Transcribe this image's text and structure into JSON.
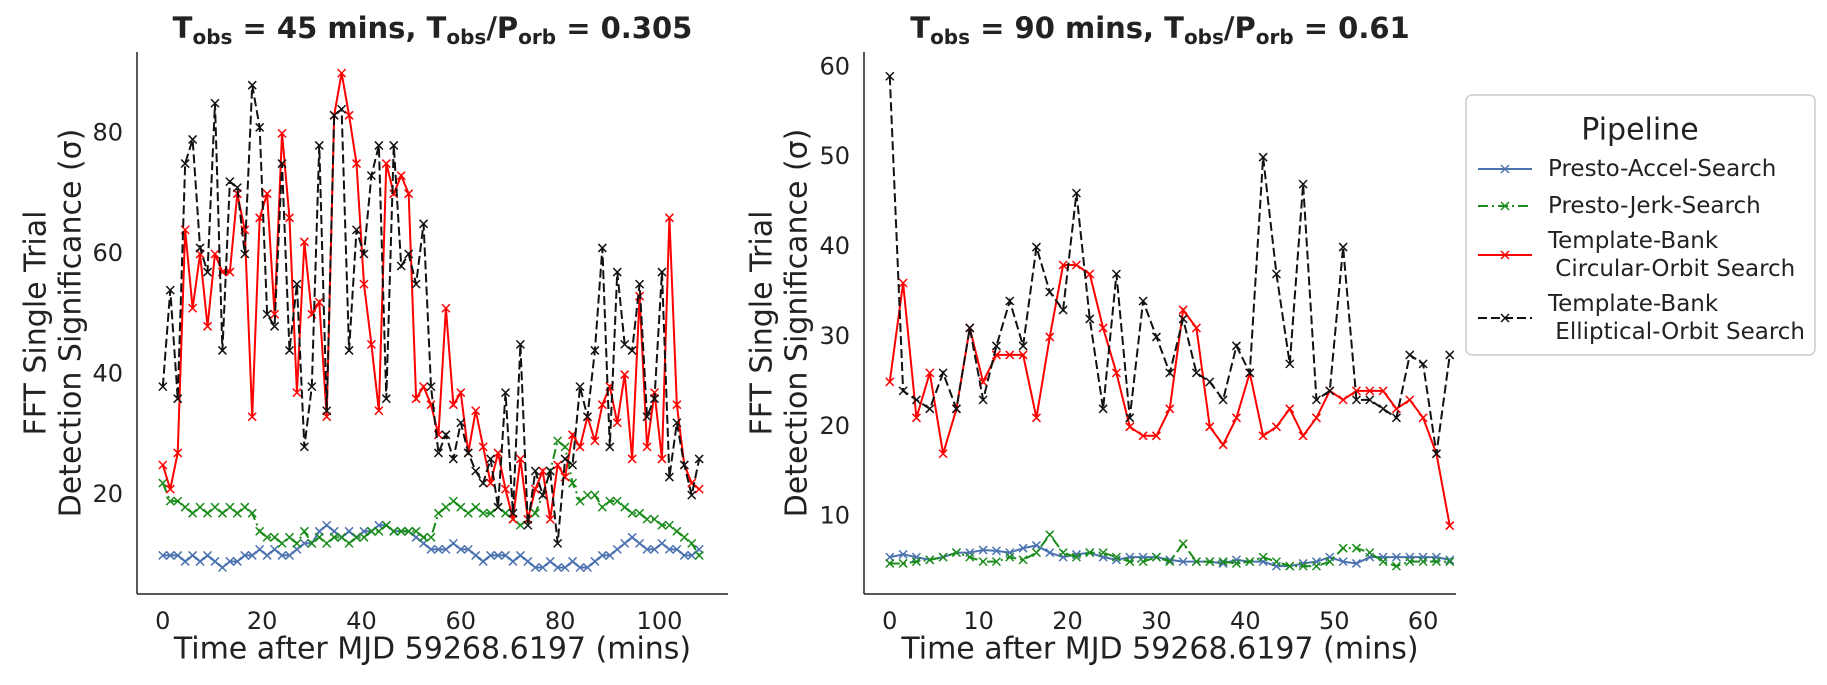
{
  "chart_data": [
    {
      "type": "line",
      "title": [
        "T",
        "obs",
        " = 45 mins, T",
        "obs",
        "/P",
        "orb",
        " = 0.305"
      ],
      "xlabel": "Time after MJD 59268.6197 (mins)",
      "ylabel": [
        "FFT Single Trial",
        "Detection Significance (σ)"
      ],
      "xlim": [
        -5.2,
        113.8
      ],
      "ylim": [
        3.6,
        93.5
      ],
      "xticks": [
        0,
        20,
        40,
        60,
        80,
        100
      ],
      "yticks": [
        20,
        40,
        60,
        80
      ],
      "x": [
        0,
        1.5,
        3,
        4.5,
        6,
        7.5,
        9,
        10.5,
        12,
        13.5,
        15,
        16.5,
        18,
        19.5,
        21,
        22.5,
        24,
        25.5,
        27,
        28.5,
        30,
        31.5,
        33,
        34.5,
        36,
        37.5,
        39,
        40.5,
        42,
        43.5,
        45,
        46.5,
        48,
        49.5,
        51,
        52.5,
        54,
        55.5,
        57,
        58.5,
        60,
        61.5,
        63,
        64.5,
        66,
        67.5,
        69,
        70.5,
        72,
        73.5,
        75,
        76.5,
        78,
        79.5,
        81,
        82.5,
        84,
        85.5,
        87,
        88.5,
        90,
        91.5,
        93,
        94.5,
        96,
        97.5,
        99,
        100.5,
        102,
        103.5,
        105,
        106.5,
        108
      ],
      "series": [
        {
          "name": "Presto-Accel-Search",
          "color": "#4c72b0",
          "linestyle": "solid",
          "values": [
            10,
            10,
            10,
            9,
            10,
            9,
            10,
            9,
            8,
            9,
            9,
            10,
            10,
            11,
            10,
            11,
            10,
            10,
            11,
            12,
            12,
            14,
            15,
            14,
            13,
            14,
            13,
            14,
            14,
            15,
            15,
            14,
            14,
            14,
            13,
            12,
            11,
            11,
            11,
            12,
            11,
            11,
            10,
            9,
            10,
            10,
            10,
            9,
            10,
            9,
            8,
            8,
            9,
            8,
            8,
            9,
            8,
            8,
            9,
            10,
            10,
            11,
            12,
            13,
            12,
            11,
            11,
            12,
            11,
            11,
            10,
            10,
            11
          ]
        },
        {
          "name": "Presto-Jerk-Search",
          "color": "#1a8c1a",
          "linestyle": "dashdot",
          "values": [
            22,
            19,
            19,
            18,
            17,
            18,
            17,
            18,
            17,
            18,
            17,
            18,
            17,
            14,
            13,
            13,
            12,
            13,
            12,
            14,
            12,
            13,
            12,
            13,
            13,
            12,
            13,
            13,
            14,
            14,
            15,
            14,
            14,
            14,
            14,
            13,
            13,
            17,
            18,
            19,
            18,
            17,
            18,
            17,
            17,
            18,
            17,
            16,
            15,
            16,
            17,
            20,
            24,
            29,
            28,
            22,
            19,
            20,
            20,
            18,
            19,
            19,
            18,
            17,
            17,
            16,
            16,
            15,
            15,
            14,
            13,
            12,
            10
          ]
        },
        {
          "name": "Template-Bank\n Circular-Orbit Search",
          "color": "#ff0000",
          "linestyle": "solid",
          "values": [
            25,
            21,
            27,
            64,
            51,
            60,
            48,
            60,
            57,
            57,
            70,
            64,
            33,
            66,
            70,
            50,
            80,
            66,
            37,
            62,
            50,
            52,
            33,
            83,
            90,
            83,
            75,
            55,
            45,
            34,
            75,
            70,
            73,
            70,
            36,
            38,
            35,
            30,
            51,
            35,
            37,
            27,
            34,
            28,
            22,
            27,
            21,
            16,
            26,
            16,
            21,
            24,
            16,
            25,
            23,
            30,
            28,
            33,
            29,
            35,
            38,
            32,
            40,
            26,
            53,
            28,
            37,
            26,
            66,
            35,
            25,
            22,
            21
          ]
        },
        {
          "name": "Template-Bank\n Elliptical-Orbit Search",
          "color": "#111111",
          "linestyle": "dashed",
          "values": [
            38,
            54,
            36,
            75,
            79,
            61,
            57,
            85,
            44,
            72,
            71,
            60,
            88,
            81,
            50,
            48,
            75,
            44,
            55,
            28,
            38,
            78,
            34,
            83,
            84,
            44,
            64,
            60,
            73,
            78,
            36,
            78,
            58,
            60,
            55,
            65,
            38,
            27,
            30,
            26,
            32,
            27,
            24,
            22,
            26,
            18,
            37,
            17,
            45,
            15,
            24,
            20,
            24,
            12,
            26,
            25,
            38,
            33,
            44,
            61,
            28,
            57,
            45,
            44,
            55,
            33,
            36,
            57,
            23,
            32,
            25,
            20,
            26
          ]
        }
      ]
    },
    {
      "type": "line",
      "title": [
        "T",
        "obs",
        " = 90 mins, T",
        "obs",
        "/P",
        "orb",
        " = 0.61"
      ],
      "xlabel": "Time after MJD 59268.6197 (mins)",
      "ylabel": [
        "FFT Single Trial",
        "Detection Significance (σ)"
      ],
      "xlim": [
        -2.9,
        63.7
      ],
      "ylim": [
        1.4,
        61.7
      ],
      "xticks": [
        0,
        10,
        20,
        30,
        40,
        50,
        60
      ],
      "yticks": [
        10,
        20,
        30,
        40,
        50,
        60
      ],
      "x": [
        0,
        1.5,
        3,
        4.5,
        6,
        7.5,
        9,
        10.5,
        12,
        13.5,
        15,
        16.5,
        18,
        19.5,
        21,
        22.5,
        24,
        25.5,
        27,
        28.5,
        30,
        31.5,
        33,
        34.5,
        36,
        37.5,
        39,
        40.5,
        42,
        43.5,
        45,
        46.5,
        48,
        49.5,
        51,
        52.5,
        54,
        55.5,
        57,
        58.5,
        60,
        61.5,
        63
      ],
      "series": [
        {
          "name": "Presto-Accel-Search",
          "color": "#4c72b0",
          "linestyle": "solid",
          "values": [
            5.5,
            5.8,
            5.5,
            5.2,
            5.5,
            6,
            6,
            6.3,
            6.2,
            6,
            6.5,
            6.8,
            6,
            5.5,
            5.8,
            6,
            5.5,
            5.2,
            5.5,
            5.5,
            5.5,
            5.2,
            5,
            5,
            5,
            4.8,
            5.2,
            5,
            5,
            4.5,
            4.5,
            4.8,
            5,
            5.5,
            5,
            4.8,
            5.5,
            5.5,
            5.5,
            5.5,
            5.5,
            5.5,
            5.2
          ]
        },
        {
          "name": "Presto-Jerk-Search",
          "color": "#1a8c1a",
          "linestyle": "dashdot",
          "values": [
            4.8,
            4.8,
            5,
            5.2,
            5.5,
            6,
            5.5,
            5,
            5,
            5.5,
            5.2,
            6,
            8,
            6,
            5.5,
            6,
            6,
            5.5,
            5,
            5,
            5.5,
            5,
            7,
            5,
            5,
            5,
            4.8,
            5,
            5.5,
            5,
            4.5,
            4.5,
            4.5,
            5,
            6.5,
            6.5,
            6,
            5,
            4.5,
            5,
            5,
            5,
            5
          ]
        },
        {
          "name": "Template-Bank\n Circular-Orbit Search",
          "color": "#ff0000",
          "linestyle": "solid",
          "values": [
            25,
            36,
            21,
            26,
            17,
            22,
            31,
            25,
            28,
            28,
            28,
            21,
            30,
            38,
            38,
            37,
            31,
            26,
            20,
            19,
            19,
            22,
            33,
            31,
            20,
            18,
            21,
            26,
            19,
            20,
            22,
            19,
            21,
            24,
            23,
            24,
            24,
            24,
            22,
            23,
            21,
            17,
            9
          ]
        },
        {
          "name": "Template-Bank\n Elliptical-Orbit Search",
          "color": "#111111",
          "linestyle": "dashed",
          "values": [
            59,
            24,
            23,
            22,
            26,
            22,
            31,
            23,
            29,
            34,
            29,
            40,
            35,
            33,
            46,
            32,
            22,
            37,
            21,
            34,
            30,
            26,
            32,
            26,
            25,
            23,
            29,
            26,
            50,
            37,
            27,
            47,
            23,
            24,
            40,
            23,
            23,
            22,
            21,
            28,
            27,
            17,
            28
          ]
        }
      ]
    }
  ],
  "legend": {
    "title": "Pipeline"
  }
}
